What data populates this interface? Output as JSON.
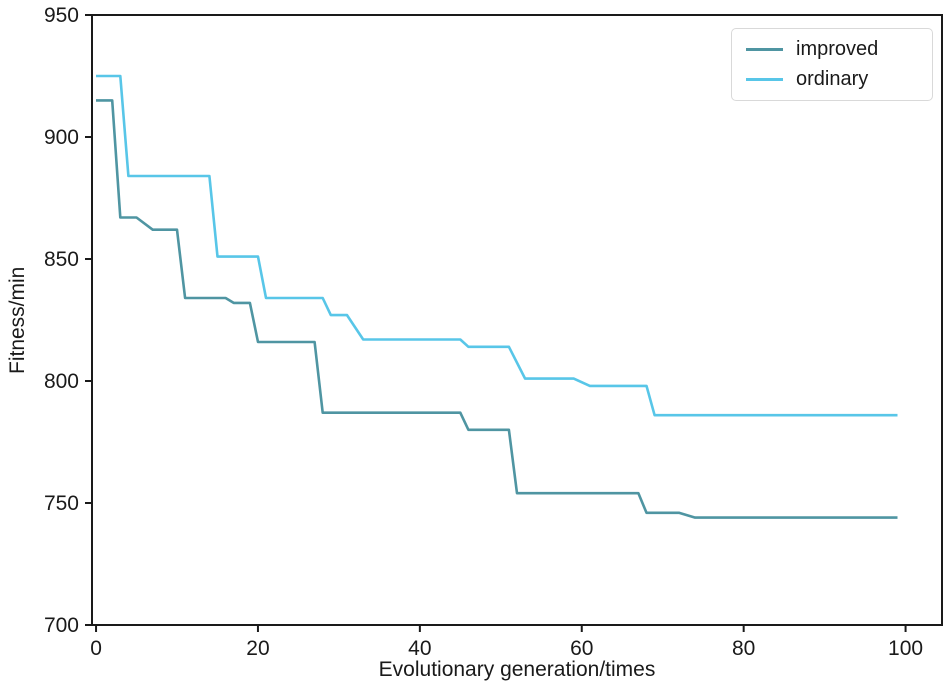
{
  "figure": {
    "background": "#ffffff",
    "spine_color": "#1a1a1a"
  },
  "chart_data": {
    "type": "line",
    "title": "",
    "xlabel": "Evolutionary generation/times",
    "ylabel": "Fitness/min",
    "xlim": [
      -0.5,
      104.5
    ],
    "ylim": [
      700,
      950
    ],
    "xticks": [
      0,
      20,
      40,
      60,
      80,
      100
    ],
    "yticks": [
      700,
      750,
      800,
      850,
      900,
      950
    ],
    "grid": false,
    "line_style": "step-like descending convergence curves",
    "legend": {
      "position": "top-right",
      "border": true,
      "entries": [
        "improved",
        "ordinary"
      ]
    },
    "series": [
      {
        "name": "improved",
        "color": "#4f95a2",
        "points": [
          [
            0,
            915
          ],
          [
            2,
            915
          ],
          [
            3,
            867
          ],
          [
            5,
            867
          ],
          [
            7,
            862
          ],
          [
            10,
            862
          ],
          [
            11,
            834
          ],
          [
            16,
            834
          ],
          [
            17,
            832
          ],
          [
            19,
            832
          ],
          [
            20,
            816
          ],
          [
            27,
            816
          ],
          [
            28,
            787
          ],
          [
            45,
            787
          ],
          [
            46,
            780
          ],
          [
            51,
            780
          ],
          [
            52,
            754
          ],
          [
            67,
            754
          ],
          [
            68,
            746
          ],
          [
            72,
            746
          ],
          [
            74,
            744
          ],
          [
            99,
            744
          ]
        ]
      },
      {
        "name": "ordinary",
        "color": "#58c6e8",
        "points": [
          [
            0,
            925
          ],
          [
            3,
            925
          ],
          [
            4,
            884
          ],
          [
            14,
            884
          ],
          [
            15,
            851
          ],
          [
            20,
            851
          ],
          [
            21,
            834
          ],
          [
            28,
            834
          ],
          [
            29,
            827
          ],
          [
            31,
            827
          ],
          [
            33,
            817
          ],
          [
            45,
            817
          ],
          [
            46,
            814
          ],
          [
            51,
            814
          ],
          [
            53,
            801
          ],
          [
            59,
            801
          ],
          [
            61,
            798
          ],
          [
            68,
            798
          ],
          [
            69,
            786
          ],
          [
            99,
            786
          ]
        ]
      }
    ]
  }
}
